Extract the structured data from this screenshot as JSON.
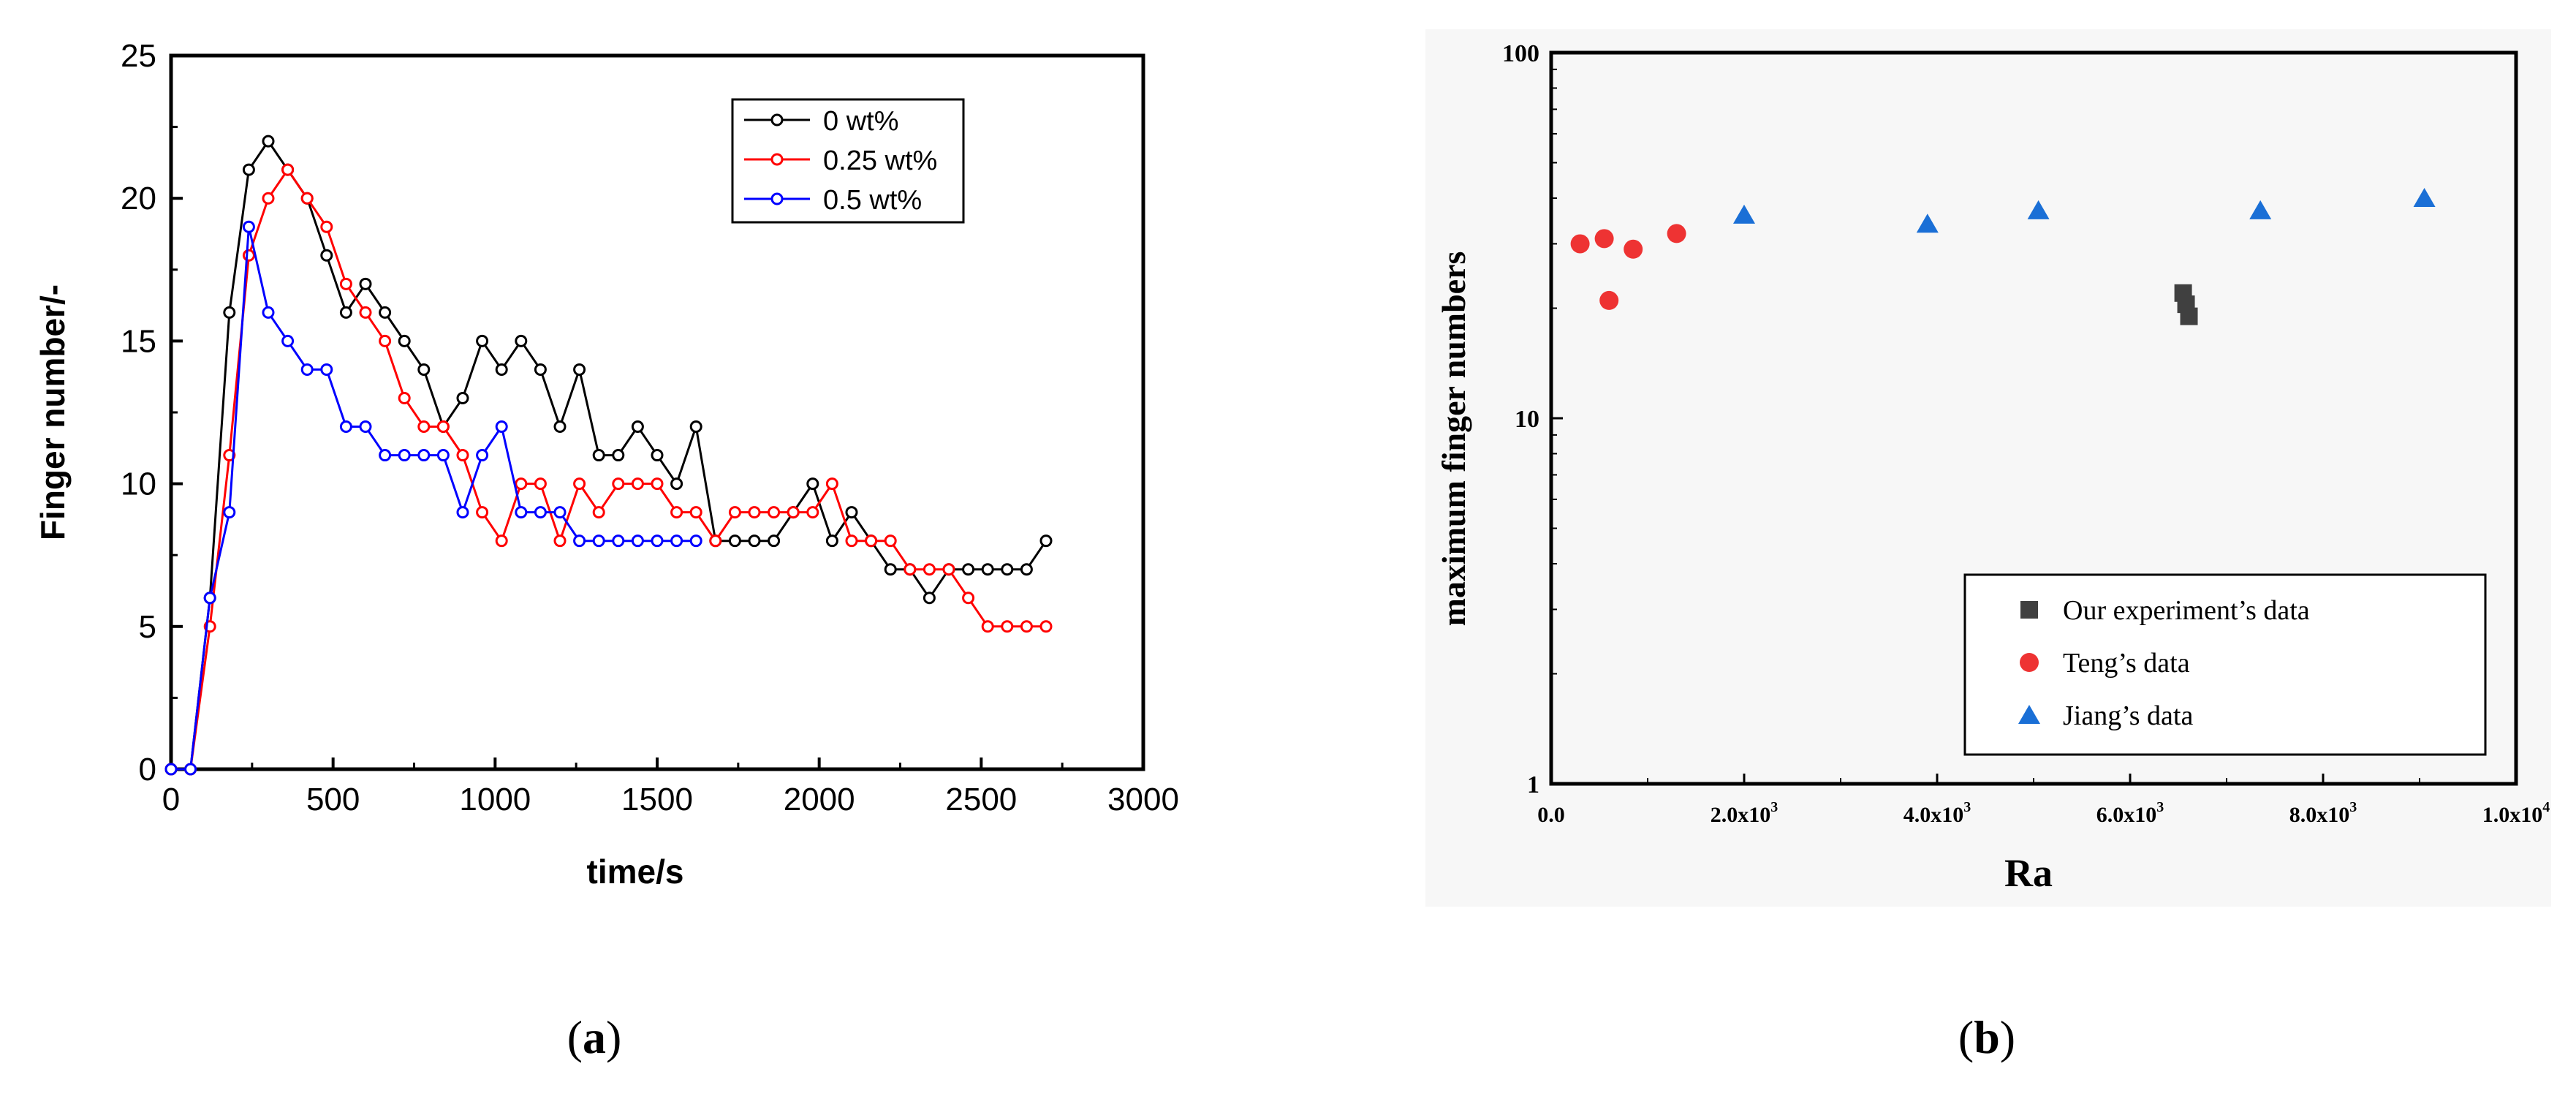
{
  "panels": [
    {
      "caption_letter": "a",
      "caption": "(a)"
    },
    {
      "caption_letter": "b",
      "caption": "(b)"
    }
  ],
  "chart_data": [
    {
      "type": "line",
      "title": "",
      "xlabel": "time/s",
      "ylabel": "Finger number/-",
      "xlim": [
        0,
        3000
      ],
      "ylim": [
        0,
        25
      ],
      "xticks": [
        0,
        500,
        1000,
        1500,
        2000,
        2500,
        3000
      ],
      "yticks": [
        0,
        5,
        10,
        15,
        20,
        25
      ],
      "legend_position": "top-right",
      "series": [
        {
          "name": "0 wt%",
          "color": "#000000",
          "x": [
            0,
            60,
            120,
            180,
            240,
            300,
            360,
            420,
            480,
            540,
            600,
            660,
            720,
            780,
            840,
            900,
            960,
            1020,
            1080,
            1140,
            1200,
            1260,
            1320,
            1380,
            1440,
            1500,
            1560,
            1620,
            1680,
            1740,
            1800,
            1860,
            1920,
            1980,
            2040,
            2100,
            2160,
            2220,
            2280,
            2340,
            2400,
            2460,
            2520,
            2580,
            2640,
            2700
          ],
          "y": [
            0,
            0,
            6,
            16,
            21,
            22,
            21,
            20,
            18,
            16,
            17,
            16,
            15,
            14,
            12,
            13,
            15,
            14,
            15,
            14,
            12,
            14,
            11,
            11,
            12,
            11,
            10,
            12,
            8,
            8,
            8,
            8,
            9,
            10,
            8,
            9,
            8,
            7,
            7,
            6,
            7,
            7,
            7,
            7,
            7,
            8
          ]
        },
        {
          "name": "0.25 wt%",
          "color": "#ff0000",
          "x": [
            0,
            60,
            120,
            180,
            240,
            300,
            360,
            420,
            480,
            540,
            600,
            660,
            720,
            780,
            840,
            900,
            960,
            1020,
            1080,
            1140,
            1200,
            1260,
            1320,
            1380,
            1440,
            1500,
            1560,
            1620,
            1680,
            1740,
            1800,
            1860,
            1920,
            1980,
            2040,
            2100,
            2160,
            2220,
            2280,
            2340,
            2400,
            2460,
            2520,
            2580,
            2640,
            2700
          ],
          "y": [
            0,
            0,
            5,
            11,
            18,
            20,
            21,
            20,
            19,
            17,
            16,
            15,
            13,
            12,
            12,
            11,
            9,
            8,
            10,
            10,
            8,
            10,
            9,
            10,
            10,
            10,
            9,
            9,
            8,
            9,
            9,
            9,
            9,
            9,
            10,
            8,
            8,
            8,
            7,
            7,
            7,
            6,
            5,
            5,
            5,
            5
          ]
        },
        {
          "name": "0.5 wt%",
          "color": "#0000ff",
          "x": [
            0,
            60,
            120,
            180,
            240,
            300,
            360,
            420,
            480,
            540,
            600,
            660,
            720,
            780,
            840,
            900,
            960,
            1020,
            1080,
            1140,
            1200,
            1260,
            1320,
            1380,
            1440,
            1500,
            1560,
            1620
          ],
          "y": [
            0,
            0,
            6,
            9,
            19,
            16,
            15,
            14,
            14,
            12,
            12,
            11,
            11,
            11,
            11,
            9,
            11,
            12,
            9,
            9,
            9,
            8,
            8,
            8,
            8,
            8,
            8,
            8
          ]
        }
      ]
    },
    {
      "type": "scatter",
      "title": "",
      "xlabel": "Ra",
      "ylabel": "maximum finger numbers",
      "xlim": [
        0,
        10000
      ],
      "ylim": [
        1,
        100
      ],
      "yscale": "log",
      "xtick_values": [
        0,
        2000,
        4000,
        6000,
        8000,
        10000
      ],
      "xtick_labels": [
        "0.0",
        "2.0x10",
        "4.0x10",
        "6.0x10",
        "8.0x10",
        "1.0x10"
      ],
      "xtick_exponents": [
        "",
        "3",
        "3",
        "3",
        "3",
        "4"
      ],
      "ytick_values": [
        1,
        10,
        100
      ],
      "ytick_labels": [
        "1",
        "10",
        "100"
      ],
      "legend_position": "bottom-right",
      "series": [
        {
          "name": "Our experiment’s data",
          "color": "#404040",
          "marker": "square",
          "x": [
            6550,
            6580,
            6610
          ],
          "y": [
            22,
            20.5,
            19
          ]
        },
        {
          "name": "Teng’s data",
          "color": "#ee3333",
          "marker": "circle",
          "x": [
            300,
            550,
            600,
            850,
            1300
          ],
          "y": [
            30,
            31,
            21,
            29,
            32
          ]
        },
        {
          "name": "Jiang’s data",
          "color": "#1a6fd6",
          "marker": "triangle",
          "x": [
            2000,
            3900,
            5050,
            7350,
            9050
          ],
          "y": [
            36,
            34,
            37,
            37,
            40
          ]
        }
      ]
    }
  ]
}
